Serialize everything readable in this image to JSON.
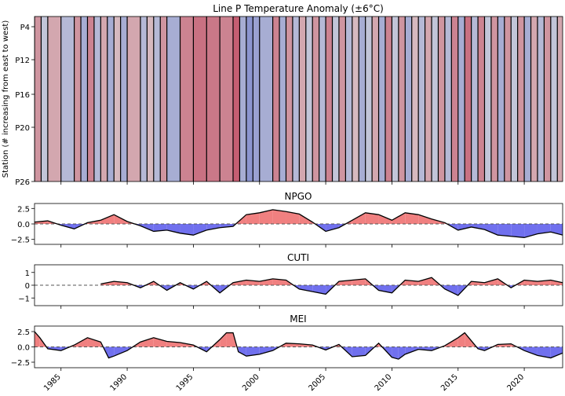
{
  "figure": {
    "colors": {
      "positive_fill": "#f08080",
      "negative_fill": "#7070ee",
      "line": "#000000",
      "zero_line": "#555555"
    }
  },
  "chart_data": [
    {
      "type": "heatmap",
      "title": "Line P Temperature Anomaly (±6°C)",
      "ylabel": "Station (# increasing from east to west)",
      "xlabel": "",
      "y_categories": [
        "P4",
        "P12",
        "P16",
        "P20",
        "P26"
      ],
      "colormap": "coolwarm",
      "value_range": [
        -6,
        6
      ],
      "xlim": [
        1983.0,
        2022.9
      ],
      "x": [
        1983.0,
        1983.5,
        1984.0,
        1985.0,
        1986.0,
        1986.5,
        1987.0,
        1987.5,
        1988.0,
        1988.5,
        1989.0,
        1989.5,
        1990.0,
        1991.0,
        1991.5,
        1992.0,
        1992.5,
        1993.0,
        1994.0,
        1995.0,
        1996.0,
        1997.0,
        1998.0,
        1998.5,
        1999.0,
        1999.5,
        2000.0,
        2001.0,
        2001.5,
        2002.0,
        2002.5,
        2003.0,
        2003.5,
        2004.0,
        2004.5,
        2005.0,
        2005.5,
        2006.0,
        2006.5,
        2007.0,
        2007.5,
        2008.0,
        2008.5,
        2009.0,
        2009.5,
        2010.0,
        2010.5,
        2011.0,
        2011.5,
        2012.0,
        2012.5,
        2013.0,
        2013.5,
        2014.0,
        2014.5,
        2015.0,
        2015.5,
        2016.0,
        2016.5,
        2017.0,
        2017.5,
        2018.0,
        2018.5,
        2019.0,
        2019.5,
        2020.0,
        2020.5,
        2021.0,
        2021.5,
        2022.0,
        2022.5
      ],
      "values": [
        2.0,
        -1.0,
        1.5,
        -1.5,
        2.0,
        -2.0,
        2.5,
        -1.5,
        1.5,
        -2.0,
        1.0,
        -2.0,
        1.5,
        -1.5,
        1.0,
        -1.5,
        2.0,
        -2.0,
        2.5,
        3.0,
        2.8,
        2.5,
        3.5,
        -2.0,
        -3.0,
        -2.5,
        -2.0,
        2.5,
        -2.0,
        2.0,
        -1.5,
        1.5,
        -1.0,
        2.0,
        -1.5,
        2.5,
        -1.0,
        2.0,
        -1.5,
        1.0,
        -2.0,
        -1.0,
        1.5,
        -2.0,
        2.5,
        -1.0,
        2.0,
        -2.0,
        1.0,
        -1.5,
        1.5,
        -1.0,
        2.0,
        -1.5,
        2.5,
        -2.0,
        3.0,
        -1.5,
        2.5,
        -1.0,
        2.0,
        -2.0,
        2.0,
        -1.0,
        2.0,
        -2.0,
        1.5,
        -1.5,
        2.0,
        -1.0,
        1.5
      ]
    },
    {
      "type": "area",
      "title": "NPGO",
      "xlabel": "",
      "ylabel": "",
      "ylim": [
        -3.3,
        3.3
      ],
      "yticks": [
        2.5,
        0.0,
        -2.5
      ],
      "ytick_labels": [
        "2.5",
        "0.0",
        "−2.5"
      ],
      "x": [
        1983.0,
        1984.0,
        1985.0,
        1986.0,
        1987.0,
        1988.0,
        1989.0,
        1990.0,
        1991.0,
        1992.0,
        1993.0,
        1994.0,
        1995.0,
        1996.0,
        1997.0,
        1998.0,
        1999.0,
        2000.0,
        2001.0,
        2002.0,
        2003.0,
        2004.0,
        2005.0,
        2006.0,
        2007.0,
        2008.0,
        2009.0,
        2010.0,
        2011.0,
        2012.0,
        2013.0,
        2014.0,
        2015.0,
        2016.0,
        2017.0,
        2018.0,
        2019.0,
        2020.0,
        2021.0,
        2022.0,
        2022.9
      ],
      "y": [
        0.3,
        0.5,
        -0.2,
        -0.8,
        0.2,
        0.6,
        1.5,
        0.4,
        -0.3,
        -1.2,
        -1.0,
        -1.5,
        -1.8,
        -1.0,
        -0.6,
        -0.4,
        1.5,
        1.8,
        2.3,
        2.0,
        1.6,
        0.3,
        -1.2,
        -0.6,
        0.6,
        1.8,
        1.5,
        0.6,
        1.8,
        1.5,
        0.8,
        0.2,
        -1.0,
        -0.5,
        -0.9,
        -1.8,
        -2.0,
        -2.2,
        -1.6,
        -1.3,
        -1.8
      ]
    },
    {
      "type": "area",
      "title": "CUTI",
      "xlabel": "",
      "ylabel": "",
      "ylim": [
        -1.6,
        1.6
      ],
      "yticks": [
        1,
        0,
        -1
      ],
      "ytick_labels": [
        "1",
        "0",
        "−1"
      ],
      "x": [
        1988.0,
        1989.0,
        1990.0,
        1991.0,
        1992.0,
        1993.0,
        1994.0,
        1995.0,
        1996.0,
        1997.0,
        1998.0,
        1999.0,
        2000.0,
        2001.0,
        2002.0,
        2003.0,
        2004.0,
        2005.0,
        2006.0,
        2007.0,
        2008.0,
        2009.0,
        2010.0,
        2011.0,
        2012.0,
        2013.0,
        2014.0,
        2015.0,
        2016.0,
        2017.0,
        2018.0,
        2019.0,
        2020.0,
        2021.0,
        2022.0,
        2022.9
      ],
      "y": [
        0.1,
        0.3,
        0.2,
        -0.2,
        0.3,
        -0.4,
        0.2,
        -0.3,
        0.3,
        -0.6,
        0.2,
        0.4,
        0.3,
        0.5,
        0.4,
        -0.3,
        -0.5,
        -0.7,
        0.3,
        0.4,
        0.5,
        -0.4,
        -0.6,
        0.4,
        0.3,
        0.6,
        -0.3,
        -0.8,
        0.3,
        0.2,
        0.5,
        -0.2,
        0.4,
        0.3,
        0.4,
        0.2
      ]
    },
    {
      "type": "area",
      "title": "MEI",
      "xlabel": "",
      "ylabel": "",
      "ylim": [
        -3.4,
        3.4
      ],
      "yticks": [
        2.5,
        0.0,
        -2.5
      ],
      "ytick_labels": [
        "2.5",
        "0.0",
        "−2.5"
      ],
      "x": [
        1983.0,
        1983.4,
        1984.0,
        1985.0,
        1986.0,
        1987.0,
        1988.0,
        1988.6,
        1989.0,
        1990.0,
        1991.0,
        1992.0,
        1993.0,
        1994.0,
        1995.0,
        1996.0,
        1997.0,
        1997.5,
        1998.0,
        1998.4,
        1999.0,
        2000.0,
        2001.0,
        2002.0,
        2003.0,
        2004.0,
        2005.0,
        2006.0,
        2007.0,
        2008.0,
        2009.0,
        2010.0,
        2010.5,
        2011.0,
        2012.0,
        2013.0,
        2014.0,
        2015.0,
        2015.5,
        2016.0,
        2016.5,
        2017.0,
        2018.0,
        2019.0,
        2020.0,
        2021.0,
        2022.0,
        2022.9
      ],
      "y": [
        2.5,
        1.5,
        -0.3,
        -0.6,
        0.3,
        1.5,
        0.8,
        -1.8,
        -1.5,
        -0.6,
        0.8,
        1.5,
        0.9,
        0.7,
        0.3,
        -0.8,
        1.2,
        2.3,
        2.3,
        -0.8,
        -1.5,
        -1.2,
        -0.6,
        0.6,
        0.5,
        0.3,
        -0.5,
        0.4,
        -1.6,
        -1.4,
        0.6,
        -1.7,
        -2.0,
        -1.2,
        -0.4,
        -0.6,
        0.2,
        1.5,
        2.3,
        1.0,
        -0.3,
        -0.6,
        0.4,
        0.5,
        -0.6,
        -1.4,
        -1.8,
        -1.0
      ]
    },
    {
      "type": "axis",
      "xticks": [
        1985,
        1990,
        1995,
        2000,
        2005,
        2010,
        2015,
        2020
      ],
      "xtick_labels": [
        "1985",
        "1990",
        "1995",
        "2000",
        "2005",
        "2010",
        "2015",
        "2020"
      ]
    }
  ]
}
